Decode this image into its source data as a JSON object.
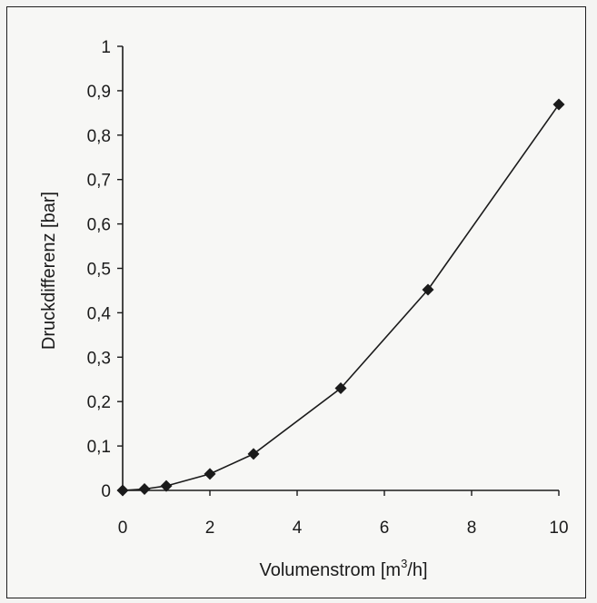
{
  "chart_data": {
    "type": "line",
    "title": "",
    "xlabel": "Volumenstrom [m",
    "xlabel_sup": "3",
    "xlabel_suffix": "/h]",
    "ylabel": "Druckdifferenz [bar]",
    "xlim": [
      0,
      10
    ],
    "ylim": [
      0,
      1
    ],
    "x_ticks": [
      "0",
      "2",
      "4",
      "6",
      "8",
      "10"
    ],
    "x_tick_values": [
      0,
      2,
      4,
      6,
      8,
      10
    ],
    "y_ticks": [
      "0",
      "0,1",
      "0,2",
      "0,3",
      "0,4",
      "0,5",
      "0,6",
      "0,7",
      "0,8",
      "0,9",
      "1"
    ],
    "y_tick_values": [
      0,
      0.1,
      0.2,
      0.3,
      0.4,
      0.5,
      0.6,
      0.7,
      0.8,
      0.9,
      1.0
    ],
    "grid": false,
    "marker": "diamond",
    "series": [
      {
        "x": [
          0,
          0.5,
          1,
          2,
          3,
          5,
          7,
          10
        ],
        "values": [
          0,
          0.003,
          0.01,
          0.037,
          0.082,
          0.23,
          0.452,
          0.869
        ]
      }
    ]
  }
}
